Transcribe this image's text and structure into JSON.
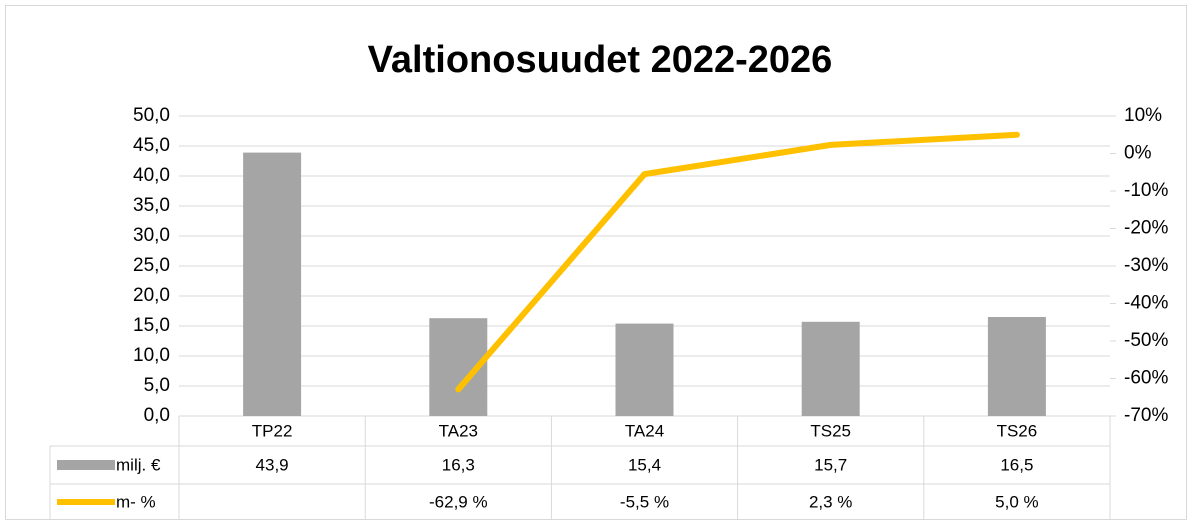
{
  "chart_data": {
    "type": "combo",
    "title": "Valtionosuudet 2022-2026",
    "categories": [
      "TP22",
      "TA23",
      "TA24",
      "TS25",
      "TS26"
    ],
    "series": [
      {
        "name": "milj. €",
        "type": "bar",
        "color": "#a5a5a5",
        "values": [
          43.9,
          16.3,
          15.4,
          15.7,
          16.5
        ],
        "value_labels": [
          "43,9",
          "16,3",
          "15,4",
          "15,7",
          "16,5"
        ]
      },
      {
        "name": "m- %",
        "type": "line",
        "axis": "y2",
        "color": "#ffc000",
        "values": [
          null,
          -62.9,
          -5.5,
          2.3,
          5.0
        ],
        "value_labels": [
          null,
          "-62,9 %",
          "-5,5 %",
          "2,3 %",
          "5,0 %"
        ]
      }
    ],
    "ylim": [
      0,
      50
    ],
    "yticks": [
      {
        "value": 0,
        "label": "0,0"
      },
      {
        "value": 5,
        "label": "5,0"
      },
      {
        "value": 10,
        "label": "10,0"
      },
      {
        "value": 15,
        "label": "15,0"
      },
      {
        "value": 20,
        "label": "20,0"
      },
      {
        "value": 25,
        "label": "25,0"
      },
      {
        "value": 30,
        "label": "30,0"
      },
      {
        "value": 35,
        "label": "35,0"
      },
      {
        "value": 40,
        "label": "40,0"
      },
      {
        "value": 45,
        "label": "45,0"
      },
      {
        "value": 50,
        "label": "50,0"
      }
    ],
    "y2lim": [
      -70,
      10
    ],
    "y2ticks": [
      {
        "value": -70,
        "label": "-70%"
      },
      {
        "value": -60,
        "label": "-60%"
      },
      {
        "value": -50,
        "label": "-50%"
      },
      {
        "value": -40,
        "label": "-40%"
      },
      {
        "value": -30,
        "label": "-30%"
      },
      {
        "value": -20,
        "label": "-20%"
      },
      {
        "value": -10,
        "label": "-10%"
      },
      {
        "value": 0,
        "label": "0%"
      },
      {
        "value": 10,
        "label": "10%"
      }
    ],
    "grid": true
  }
}
